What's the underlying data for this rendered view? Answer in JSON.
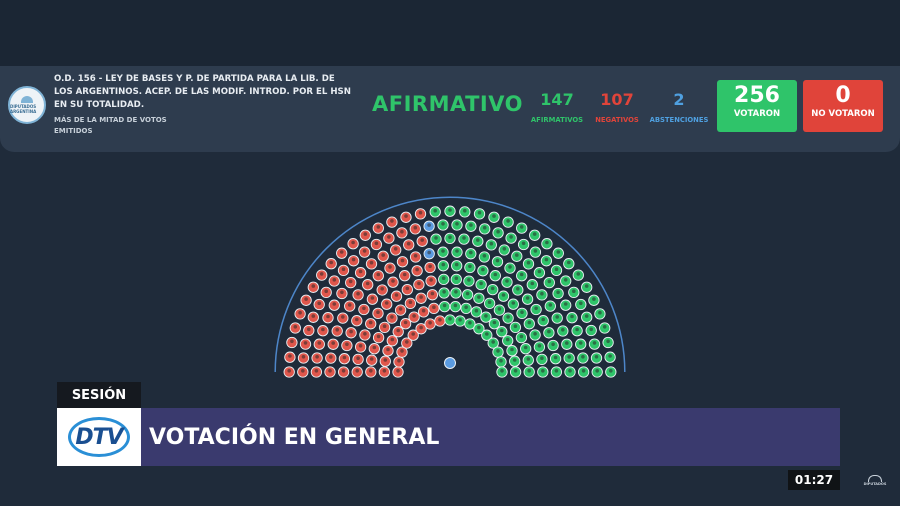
{
  "header": {
    "logo_text": "DIPUTADOS ARGENTINA",
    "title": "O.D. 156 - LEY DE BASES Y P. DE PARTIDA PARA LA LIB. DE LOS ARGENTINOS. ACEP. DE LAS MODIF. INTROD. POR EL HSN EN SU TOTALIDAD.",
    "subtitle": "MÁS DE LA MITAD DE VOTOS EMITIDOS",
    "result": "AFIRMATIVO",
    "afirmativos": {
      "value": "147",
      "label": "AFIRMATIVOS"
    },
    "negativos": {
      "value": "107",
      "label": "NEGATIVOS"
    },
    "abstenciones": {
      "value": "2",
      "label": "ABSTENCIONES"
    },
    "votaron": {
      "value": "256",
      "label": "VOTARON"
    },
    "no_votaron": {
      "value": "0",
      "label": "NO VOTARON"
    }
  },
  "chamber": {
    "rows": [
      17,
      20,
      22,
      24,
      26,
      28,
      31,
      34,
      35
    ],
    "counts": {
      "negativo": 107,
      "abstencion": 2,
      "afirmativo": 147
    },
    "colors": {
      "afirmativo": "#2fc46a",
      "negativo": "#e0574c",
      "abstencion": "#5b9be0",
      "president": "#5b9be0",
      "arc": "#4d86c9"
    }
  },
  "lower_third": {
    "tag": "SESIÓN",
    "channel": "DTV",
    "headline": "VOTACIÓN EN GENERAL"
  },
  "clock": "01:27",
  "corner_logo_text": "DIPUTADOS"
}
